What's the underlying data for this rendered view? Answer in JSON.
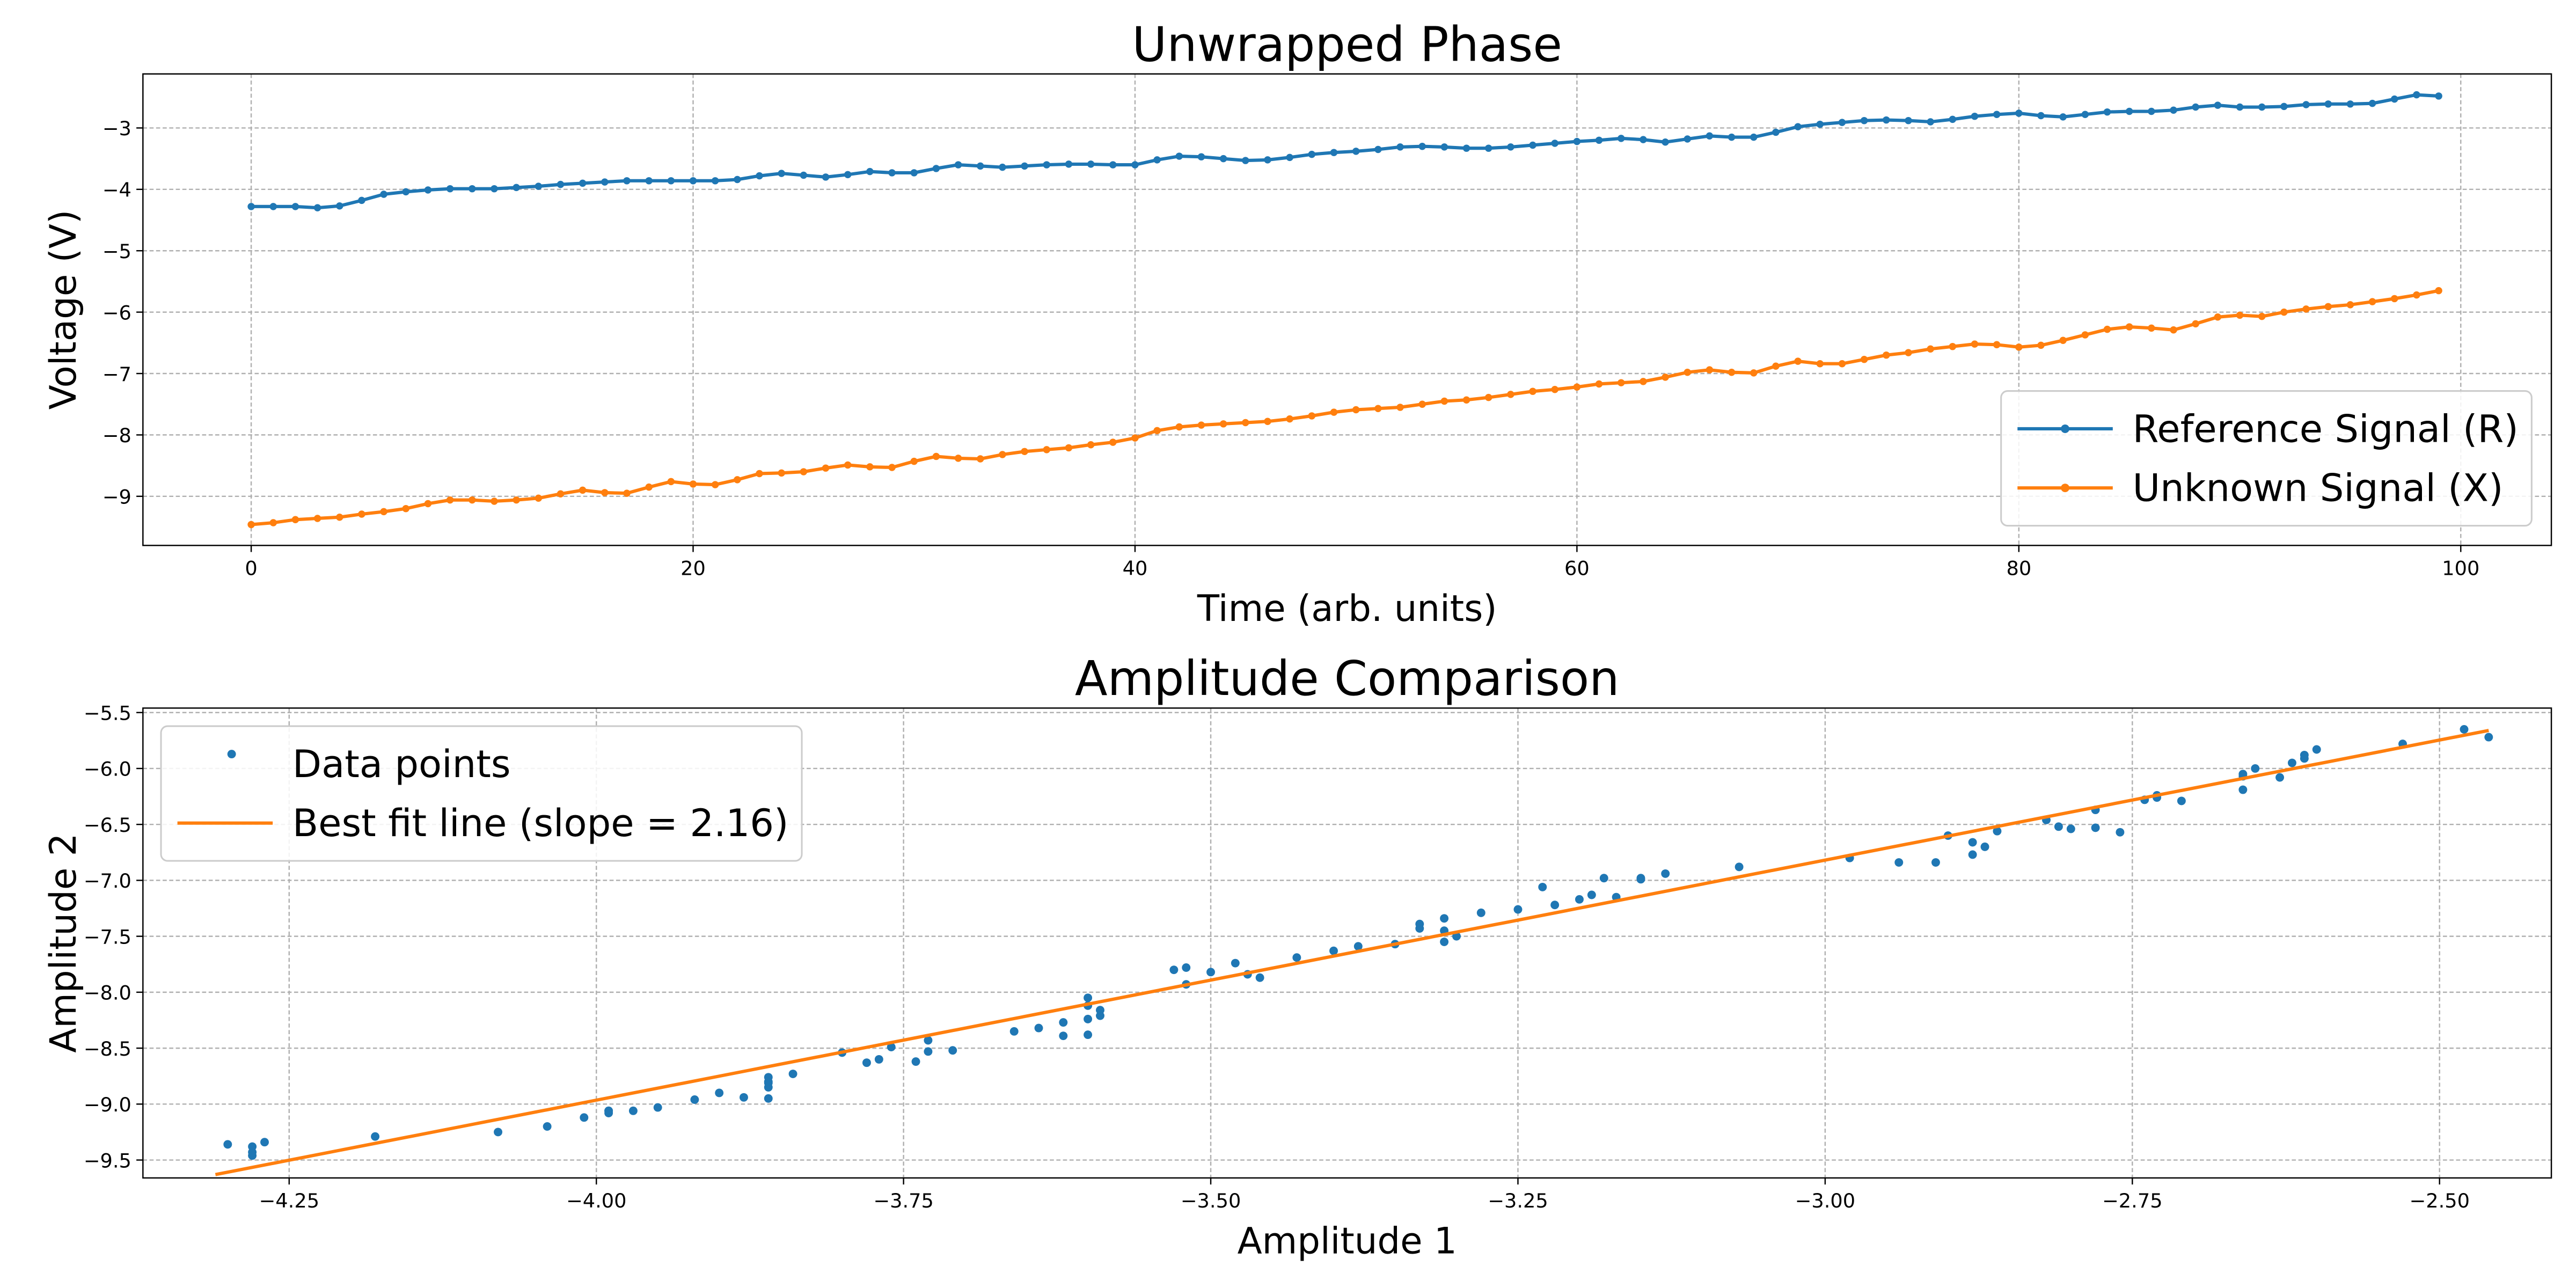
{
  "chart_data": [
    {
      "type": "line",
      "title": "Unwrapped Phase",
      "x_label": "Time (arb. units)",
      "y_label": "Voltage (V)",
      "x": [
        0,
        1,
        2,
        3,
        4,
        5,
        6,
        7,
        8,
        9,
        10,
        11,
        12,
        13,
        14,
        15,
        16,
        17,
        18,
        19,
        20,
        21,
        22,
        23,
        24,
        25,
        26,
        27,
        28,
        29,
        30,
        31,
        32,
        33,
        34,
        35,
        36,
        37,
        38,
        39,
        40,
        41,
        42,
        43,
        44,
        45,
        46,
        47,
        48,
        49,
        50,
        51,
        52,
        53,
        54,
        55,
        56,
        57,
        58,
        59,
        60,
        61,
        62,
        63,
        64,
        65,
        66,
        67,
        68,
        69,
        70,
        71,
        72,
        73,
        74,
        75,
        76,
        77,
        78,
        79,
        80,
        81,
        82,
        83,
        84,
        85,
        86,
        87,
        88,
        89,
        90,
        91,
        92,
        93,
        94,
        95,
        96,
        97,
        98,
        99
      ],
      "series": [
        {
          "name": "Reference Signal (R)",
          "color": "#1f77b4",
          "mode": "lines+markers",
          "values": [
            -4.28,
            -4.28,
            -4.28,
            -4.3,
            -4.27,
            -4.18,
            -4.08,
            -4.04,
            -4.01,
            -3.99,
            -3.99,
            -3.99,
            -3.97,
            -3.95,
            -3.92,
            -3.9,
            -3.88,
            -3.86,
            -3.86,
            -3.86,
            -3.86,
            -3.86,
            -3.84,
            -3.78,
            -3.74,
            -3.77,
            -3.8,
            -3.76,
            -3.71,
            -3.73,
            -3.73,
            -3.66,
            -3.6,
            -3.62,
            -3.64,
            -3.62,
            -3.6,
            -3.59,
            -3.59,
            -3.6,
            -3.6,
            -3.52,
            -3.46,
            -3.47,
            -3.5,
            -3.53,
            -3.52,
            -3.48,
            -3.43,
            -3.4,
            -3.38,
            -3.35,
            -3.31,
            -3.3,
            -3.31,
            -3.33,
            -3.33,
            -3.31,
            -3.28,
            -3.25,
            -3.22,
            -3.2,
            -3.17,
            -3.19,
            -3.23,
            -3.18,
            -3.13,
            -3.15,
            -3.15,
            -3.07,
            -2.98,
            -2.94,
            -2.91,
            -2.88,
            -2.87,
            -2.88,
            -2.9,
            -2.86,
            -2.81,
            -2.78,
            -2.76,
            -2.8,
            -2.82,
            -2.78,
            -2.74,
            -2.73,
            -2.73,
            -2.71,
            -2.66,
            -2.63,
            -2.66,
            -2.66,
            -2.65,
            -2.62,
            -2.61,
            -2.61,
            -2.6,
            -2.53,
            -2.46,
            -2.48
          ]
        },
        {
          "name": "Unknown Signal (X)",
          "color": "#ff7f0e",
          "mode": "lines+markers",
          "values": [
            -9.46,
            -9.43,
            -9.38,
            -9.36,
            -9.34,
            -9.29,
            -9.25,
            -9.2,
            -9.12,
            -9.06,
            -9.06,
            -9.08,
            -9.06,
            -9.03,
            -8.96,
            -8.9,
            -8.94,
            -8.95,
            -8.85,
            -8.76,
            -8.8,
            -8.81,
            -8.73,
            -8.63,
            -8.62,
            -8.6,
            -8.54,
            -8.49,
            -8.52,
            -8.53,
            -8.43,
            -8.35,
            -8.38,
            -8.39,
            -8.32,
            -8.27,
            -8.24,
            -8.21,
            -8.16,
            -8.12,
            -8.05,
            -7.93,
            -7.87,
            -7.84,
            -7.82,
            -7.8,
            -7.78,
            -7.74,
            -7.69,
            -7.63,
            -7.59,
            -7.57,
            -7.55,
            -7.5,
            -7.45,
            -7.43,
            -7.39,
            -7.34,
            -7.29,
            -7.26,
            -7.22,
            -7.17,
            -7.15,
            -7.13,
            -7.06,
            -6.98,
            -6.94,
            -6.98,
            -6.99,
            -6.88,
            -6.8,
            -6.84,
            -6.84,
            -6.77,
            -6.7,
            -6.66,
            -6.6,
            -6.56,
            -6.52,
            -6.53,
            -6.57,
            -6.54,
            -6.46,
            -6.37,
            -6.28,
            -6.24,
            -6.26,
            -6.29,
            -6.19,
            -6.08,
            -6.05,
            -6.07,
            -6.0,
            -5.95,
            -5.91,
            -5.88,
            -5.83,
            -5.78,
            -5.72,
            -5.65
          ]
        }
      ],
      "xlim": [
        -4.9,
        104.1
      ],
      "ylim": [
        -9.8,
        -2.12
      ],
      "xticks": [
        0,
        20,
        40,
        60,
        80,
        100
      ],
      "yticks": [
        {
          "value": -9,
          "label": "−9"
        },
        {
          "value": -8,
          "label": "−8"
        },
        {
          "value": -7,
          "label": "−7"
        },
        {
          "value": -6,
          "label": "−6"
        },
        {
          "value": -5,
          "label": "−5"
        },
        {
          "value": -4,
          "label": "−4"
        },
        {
          "value": -3,
          "label": "−3"
        }
      ],
      "grid": true,
      "legend": "lower right"
    },
    {
      "type": "scatter",
      "title": "Amplitude Comparison",
      "x_label": "Amplitude 1",
      "y_label": "Amplitude 2",
      "series": [
        {
          "name": "Data points",
          "color": "#1f77b4",
          "mode": "markers",
          "x": [
            -4.28,
            -4.28,
            -4.28,
            -4.3,
            -4.27,
            -4.18,
            -4.08,
            -4.04,
            -4.01,
            -3.99,
            -3.99,
            -3.99,
            -3.97,
            -3.95,
            -3.92,
            -3.9,
            -3.88,
            -3.86,
            -3.86,
            -3.86,
            -3.86,
            -3.86,
            -3.84,
            -3.78,
            -3.74,
            -3.77,
            -3.8,
            -3.76,
            -3.71,
            -3.73,
            -3.73,
            -3.66,
            -3.6,
            -3.62,
            -3.64,
            -3.62,
            -3.6,
            -3.59,
            -3.59,
            -3.6,
            -3.6,
            -3.52,
            -3.46,
            -3.47,
            -3.5,
            -3.53,
            -3.52,
            -3.48,
            -3.43,
            -3.4,
            -3.38,
            -3.35,
            -3.31,
            -3.3,
            -3.31,
            -3.33,
            -3.33,
            -3.31,
            -3.28,
            -3.25,
            -3.22,
            -3.2,
            -3.17,
            -3.19,
            -3.23,
            -3.18,
            -3.13,
            -3.15,
            -3.15,
            -3.07,
            -2.98,
            -2.94,
            -2.91,
            -2.88,
            -2.87,
            -2.88,
            -2.9,
            -2.86,
            -2.81,
            -2.78,
            -2.76,
            -2.8,
            -2.82,
            -2.78,
            -2.74,
            -2.73,
            -2.73,
            -2.71,
            -2.66,
            -2.63,
            -2.66,
            -2.66,
            -2.65,
            -2.62,
            -2.61,
            -2.61,
            -2.6,
            -2.53,
            -2.46,
            -2.48
          ],
          "values": [
            -9.46,
            -9.43,
            -9.38,
            -9.36,
            -9.34,
            -9.29,
            -9.25,
            -9.2,
            -9.12,
            -9.06,
            -9.06,
            -9.08,
            -9.06,
            -9.03,
            -8.96,
            -8.9,
            -8.94,
            -8.95,
            -8.85,
            -8.76,
            -8.8,
            -8.81,
            -8.73,
            -8.63,
            -8.62,
            -8.6,
            -8.54,
            -8.49,
            -8.52,
            -8.53,
            -8.43,
            -8.35,
            -8.38,
            -8.39,
            -8.32,
            -8.27,
            -8.24,
            -8.21,
            -8.16,
            -8.12,
            -8.05,
            -7.93,
            -7.87,
            -7.84,
            -7.82,
            -7.8,
            -7.78,
            -7.74,
            -7.69,
            -7.63,
            -7.59,
            -7.57,
            -7.55,
            -7.5,
            -7.45,
            -7.43,
            -7.39,
            -7.34,
            -7.29,
            -7.26,
            -7.22,
            -7.17,
            -7.15,
            -7.13,
            -7.06,
            -6.98,
            -6.94,
            -6.98,
            -6.99,
            -6.88,
            -6.8,
            -6.84,
            -6.84,
            -6.77,
            -6.7,
            -6.66,
            -6.6,
            -6.56,
            -6.52,
            -6.53,
            -6.57,
            -6.54,
            -6.46,
            -6.37,
            -6.28,
            -6.24,
            -6.26,
            -6.29,
            -6.19,
            -6.08,
            -6.05,
            -6.07,
            -6.0,
            -5.95,
            -5.91,
            -5.88,
            -5.83,
            -5.78,
            -5.72,
            -5.65
          ]
        },
        {
          "name": "Best fit line (slope = 2.16)",
          "color": "#ff7f0e",
          "mode": "lines",
          "x": [
            -4.31,
            -2.46
          ],
          "values": [
            -9.63,
            -5.66
          ]
        }
      ],
      "xlim": [
        -4.369,
        -2.409
      ],
      "ylim": [
        -9.66,
        -5.46
      ],
      "xticks": [
        {
          "value": -4.25,
          "label": "−4.25"
        },
        {
          "value": -4.0,
          "label": "−4.00"
        },
        {
          "value": -3.75,
          "label": "−3.75"
        },
        {
          "value": -3.5,
          "label": "−3.50"
        },
        {
          "value": -3.25,
          "label": "−3.25"
        },
        {
          "value": -3.0,
          "label": "−3.00"
        },
        {
          "value": -2.75,
          "label": "−2.75"
        },
        {
          "value": -2.5,
          "label": "−2.50"
        }
      ],
      "yticks": [
        {
          "value": -9.5,
          "label": "−9.5"
        },
        {
          "value": -9.0,
          "label": "−9.0"
        },
        {
          "value": -8.5,
          "label": "−8.5"
        },
        {
          "value": -8.0,
          "label": "−8.0"
        },
        {
          "value": -7.5,
          "label": "−7.5"
        },
        {
          "value": -7.0,
          "label": "−7.0"
        },
        {
          "value": -6.5,
          "label": "−6.5"
        },
        {
          "value": -6.0,
          "label": "−6.0"
        },
        {
          "value": -5.5,
          "label": "−5.5"
        }
      ],
      "grid": true,
      "legend": "upper left"
    }
  ]
}
